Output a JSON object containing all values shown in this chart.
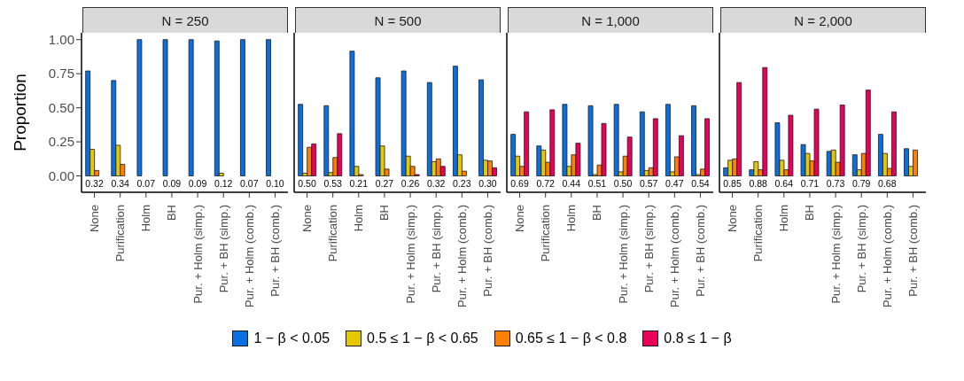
{
  "chart_data": [
    {
      "type": "bar",
      "title": "N = 250",
      "ylabel": "Proportion",
      "legend": "bottom",
      "categories": [
        "None",
        "Purification",
        "Holm",
        "BH",
        "Pur. + Holm (simp.)",
        "Pur. + BH (simp.)",
        "Pur. + Holm (comb.)",
        "Pur. + BH (comb.)"
      ],
      "series": [
        {
          "name": "1 − β < 0.05",
          "color": "#0a6fe0",
          "values": [
            0.77,
            0.7,
            1.0,
            1.0,
            1.0,
            0.99,
            1.0,
            1.0
          ]
        },
        {
          "name": "0.5 ≤ 1 − β < 0.65",
          "color": "#e6c800",
          "values": [
            0.195,
            0.225,
            0,
            0,
            0,
            0.02,
            0,
            0
          ]
        },
        {
          "name": "0.65 ≤ 1 − β < 0.8",
          "color": "#ff7f00",
          "values": [
            0.04,
            0.085,
            0,
            0,
            0,
            0,
            0,
            0
          ]
        },
        {
          "name": "0.8 ≤ 1 − β",
          "color": "#e8005a",
          "values": [
            0,
            0,
            0,
            0,
            0,
            0,
            0,
            0
          ]
        }
      ],
      "ylim": [
        -0.12,
        1.05
      ],
      "yticks": [
        {
          "value": 0,
          "label": "0.00"
        },
        {
          "value": 0.25,
          "label": "0.25"
        },
        {
          "value": 0.5,
          "label": "0.50"
        },
        {
          "value": 0.75,
          "label": "0.75"
        },
        {
          "value": 1,
          "label": "1.00"
        }
      ],
      "annotations": [
        "0.32",
        "0.34",
        "0.07",
        "0.09",
        "0.09",
        "0.12",
        "0.07",
        "0.10"
      ]
    },
    {
      "type": "bar",
      "title": "N = 500",
      "tick_labels": "x",
      "categories": [
        "None",
        "Purification",
        "Holm",
        "BH",
        "Pur. + Holm (simp.)",
        "Pur. + BH (simp.)",
        "Pur. + Holm (comb.)",
        "Pur. + BH (comb.)"
      ],
      "series": [
        {
          "color": "#0a6fe0",
          "values": [
            0.525,
            0.515,
            0.915,
            0.72,
            0.77,
            0.685,
            0.805,
            0.705
          ]
        },
        {
          "color": "#e6c800",
          "values": [
            0.02,
            0.025,
            0.07,
            0.22,
            0.145,
            0.105,
            0.155,
            0.115
          ]
        },
        {
          "color": "#ff7f00",
          "values": [
            0.21,
            0.135,
            0.01,
            0.05,
            0.07,
            0.125,
            0.035,
            0.11
          ]
        },
        {
          "color": "#e8005a",
          "values": [
            0.235,
            0.31,
            0,
            0,
            0.01,
            0.07,
            0,
            0.06
          ]
        }
      ],
      "ylim": [
        -0.12,
        1.05
      ],
      "annotations": [
        "0.50",
        "0.53",
        "0.21",
        "0.27",
        "0.26",
        "0.32",
        "0.23",
        "0.30"
      ]
    },
    {
      "type": "bar",
      "title": "N = 1,000",
      "tick_labels": "x",
      "categories": [
        "None",
        "Purification",
        "Holm",
        "BH",
        "Pur. + Holm (simp.)",
        "Pur. + BH (simp.)",
        "Pur. + Holm (comb.)",
        "Pur. + BH (comb.)"
      ],
      "series": [
        {
          "color": "#0a6fe0",
          "values": [
            0.305,
            0.22,
            0.525,
            0.515,
            0.525,
            0.47,
            0.525,
            0.515
          ]
        },
        {
          "color": "#e6c800",
          "values": [
            0.145,
            0.19,
            0.07,
            0.01,
            0.03,
            0.04,
            0.03,
            0.01
          ]
        },
        {
          "color": "#ff7f00",
          "values": [
            0.07,
            0.1,
            0.155,
            0.08,
            0.145,
            0.06,
            0.14,
            0.05
          ]
        },
        {
          "color": "#e8005a",
          "values": [
            0.47,
            0.485,
            0.24,
            0.385,
            0.285,
            0.42,
            0.295,
            0.42
          ]
        }
      ],
      "ylim": [
        -0.12,
        1.05
      ],
      "annotations": [
        "0.69",
        "0.72",
        "0.44",
        "0.51",
        "0.50",
        "0.57",
        "0.47",
        "0.54"
      ]
    },
    {
      "type": "bar",
      "title": "N = 2,000",
      "tick_labels": "x",
      "categories": [
        "None",
        "Purification",
        "Holm",
        "BH",
        "Pur. + Holm (simp.)",
        "Pur. + BH (simp.)",
        "Pur. + Holm (comb.)",
        "Pur. + BH (comb.)"
      ],
      "series": [
        {
          "color": "#0a6fe0",
          "values": [
            0.06,
            0.045,
            0.39,
            0.23,
            0.18,
            0.155,
            0.305,
            0.2
          ]
        },
        {
          "color": "#e6c800",
          "values": [
            0.115,
            0.105,
            0.115,
            0.165,
            0.19,
            0.045,
            0.165,
            0.07
          ]
        },
        {
          "color": "#ff7f00",
          "values": [
            0.125,
            0.045,
            0.045,
            0.11,
            0.1,
            0.165,
            0.055,
            0.19
          ]
        },
        {
          "color": "#e8005a",
          "values": [
            0.685,
            0.795,
            0.445,
            0.49,
            0.52,
            0.63,
            0.47,
            null
          ]
        }
      ],
      "ylim": [
        -0.12,
        1.05
      ],
      "annotations": [
        "0.85",
        "0.88",
        "0.64",
        "0.71",
        "0.73",
        "0.79",
        "0.68"
      ]
    }
  ]
}
